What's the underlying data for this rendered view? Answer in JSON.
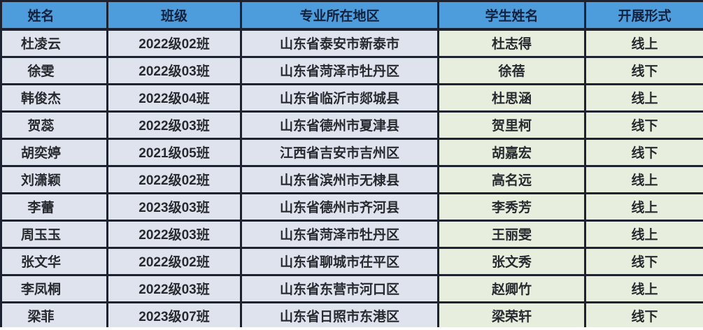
{
  "table": {
    "headers": [
      "姓名",
      "班级",
      "专业所在地区",
      "学生姓名",
      "开展形式"
    ],
    "rows": [
      [
        "杜凌云",
        "2022级02班",
        "山东省泰安市新泰市",
        "杜志得",
        "线上"
      ],
      [
        "徐雯",
        "2022级03班",
        "山东省菏泽市牡丹区",
        "徐蓓",
        "线下"
      ],
      [
        "韩俊杰",
        "2022级04班",
        "山东省临沂市郯城县",
        "杜思涵",
        "线上"
      ],
      [
        "贺蕊",
        "2022级03班",
        "山东省德州市夏津县",
        "贺里柯",
        "线下"
      ],
      [
        "胡奕婷",
        "2021级05班",
        "江西省吉安市吉州区",
        "胡嘉宏",
        "线下"
      ],
      [
        "刘潇颖",
        "2022级02班",
        "山东省滨州市无棣县",
        "高名远",
        "线上"
      ],
      [
        "李蕾",
        "2023级03班",
        "山东省德州市齐河县",
        "李秀芳",
        "线上"
      ],
      [
        "周玉玉",
        "2022级03班",
        "山东省菏泽市牡丹区",
        "王丽雯",
        "线上"
      ],
      [
        "张文华",
        "2022级02班",
        "山东省聊城市茌平区",
        "张文秀",
        "线下"
      ],
      [
        "李凤桐",
        "2022级03班",
        "山东省东营市河口区",
        "赵卿竹",
        "线上"
      ],
      [
        "梁菲",
        "2023级07班",
        "山东省日照市东港区",
        "梁荣轩",
        "线下"
      ]
    ]
  },
  "colors": {
    "header_bg": "#4d9cdb",
    "header_text": "#14213d",
    "row_bg_blue": "#dfe3ed",
    "row_bg_green": "#e8eedd",
    "border": "#1d2230",
    "body_text": "#26292e"
  }
}
